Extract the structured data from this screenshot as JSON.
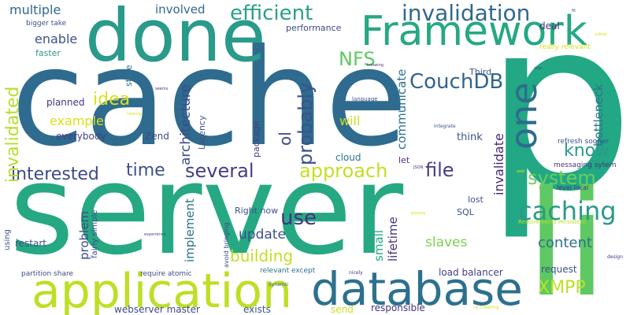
{
  "words": [
    {
      "text": "server",
      "color": "#26a983"
    },
    {
      "text": "cache",
      "color": "#2f6b8e"
    },
    {
      "text": "p",
      "color": "#22a884"
    },
    {
      "text": "done",
      "color": "#2a9a8a"
    },
    {
      "text": "li",
      "color": "#5ec962"
    },
    {
      "text": "application",
      "color": "#bddf26"
    },
    {
      "text": "database",
      "color": "#2c718e"
    },
    {
      "text": "Framework",
      "color": "#26a883"
    },
    {
      "text": "one",
      "color": "#2f6b8e"
    },
    {
      "text": "caching",
      "color": "#2a9a8a"
    },
    {
      "text": "invalidation",
      "color": "#31688e"
    },
    {
      "text": "efficient",
      "color": "#2c9f88"
    },
    {
      "text": "CouchDB",
      "color": "#32648e"
    },
    {
      "text": "NFS",
      "color": "#5ec962"
    },
    {
      "text": "approach",
      "color": "#c2df23"
    },
    {
      "text": "several",
      "color": "#433e85"
    },
    {
      "text": "time",
      "color": "#3b528b"
    },
    {
      "text": "interested",
      "color": "#3e4a89"
    },
    {
      "text": "system",
      "color": "#6ccd5a"
    },
    {
      "text": "file",
      "color": "#433e85"
    },
    {
      "text": "know",
      "color": "#2a9a8a"
    },
    {
      "text": "probably",
      "color": "#3b528b"
    },
    {
      "text": "XMPP",
      "color": "#bddf26"
    },
    {
      "text": "invalidated",
      "color": "#b5de2b"
    },
    {
      "text": "use",
      "color": "#46327e"
    },
    {
      "text": "content",
      "color": "#2c728e"
    },
    {
      "text": "idea",
      "color": "#d8e219"
    },
    {
      "text": "building",
      "color": "#c2df23"
    },
    {
      "text": "architecture",
      "color": "#3e4a89"
    },
    {
      "text": "invalidate",
      "color": "#482878"
    },
    {
      "text": "update",
      "color": "#3b528b"
    },
    {
      "text": "ol",
      "color": "#3e4a89"
    },
    {
      "text": "slaves",
      "color": "#7ad151"
    },
    {
      "text": "communicate",
      "color": "#2c728e"
    },
    {
      "text": "multiple",
      "color": "#31688e"
    },
    {
      "text": "enable",
      "color": "#3b528b"
    },
    {
      "text": "example",
      "color": "#d8e219"
    },
    {
      "text": "will",
      "color": "#c8e020"
    },
    {
      "text": "involved",
      "color": "#31688e"
    },
    {
      "text": "bottleneck",
      "color": "#2c728e"
    },
    {
      "text": "problem",
      "color": "#3e4a89"
    },
    {
      "text": "implement",
      "color": "#2c728e"
    },
    {
      "text": "lifetime",
      "color": "#46327e"
    },
    {
      "text": "small",
      "color": "#22a884"
    },
    {
      "text": "planned",
      "color": "#46327e"
    },
    {
      "text": "think",
      "color": "#3b528b"
    },
    {
      "text": "everybody",
      "color": "#433e85"
    },
    {
      "text": "Zend",
      "color": "#3e4a89"
    },
    {
      "text": "request",
      "color": "#3b528b"
    },
    {
      "text": "webserver master",
      "color": "#3e4a89"
    },
    {
      "text": "exists",
      "color": "#3b528b"
    },
    {
      "text": "responsible",
      "color": "#46327e"
    },
    {
      "text": "deal",
      "color": "#46327e"
    },
    {
      "text": "restart",
      "color": "#3b528b"
    },
    {
      "text": "load balancer",
      "color": "#433e85"
    },
    {
      "text": "performance",
      "color": "#3e4a89"
    },
    {
      "text": "faster",
      "color": "#2a9a8a"
    },
    {
      "text": "store",
      "color": "#2c728e"
    },
    {
      "text": "package",
      "color": "#433e85"
    },
    {
      "text": "Latency",
      "color": "#3b528b"
    },
    {
      "text": "cloud",
      "color": "#2c728e"
    },
    {
      "text": "let",
      "color": "#46327e"
    },
    {
      "text": "Third",
      "color": "#3b528b"
    },
    {
      "text": "lost",
      "color": "#3b528b"
    },
    {
      "text": "SQL",
      "color": "#3e4a89"
    },
    {
      "text": "send",
      "color": "#c8e020"
    },
    {
      "text": "Right now",
      "color": "#3b528b"
    },
    {
      "text": "refresh sooner",
      "color": "#3b528b"
    },
    {
      "text": "messaging sytem",
      "color": "#46327e"
    },
    {
      "text": "partition share",
      "color": "#3e4a89"
    },
    {
      "text": "require atomic",
      "color": "#3e4a89"
    },
    {
      "text": "relevant except",
      "color": "#2c728e"
    },
    {
      "text": "bigger take",
      "color": "#3b528b"
    },
    {
      "text": "really relevant",
      "color": "#d8e219"
    },
    {
      "text": "fairly simple",
      "color": "#3e4a89"
    },
    {
      "text": "using",
      "color": "#3b528b"
    },
    {
      "text": "level local",
      "color": "#46327e"
    },
    {
      "text": "avoid bringing",
      "color": "#3e4a89"
    },
    {
      "text": "Requirements Persistent",
      "color": "#bddf26"
    },
    {
      "text": "dynamic",
      "color": "#3b528b"
    },
    {
      "text": "nicely",
      "color": "#46327e"
    },
    {
      "text": "re creating",
      "color": "#d8e219"
    },
    {
      "text": "design",
      "color": "#46327e"
    },
    {
      "text": "language",
      "color": "#3b528b"
    },
    {
      "text": "integrate",
      "color": "#3b528b"
    },
    {
      "text": "JSON",
      "color": "#46327e"
    },
    {
      "text": "playing",
      "color": "#d8e219"
    },
    {
      "text": "experience",
      "color": "#3e4a89"
    },
    {
      "text": "seems",
      "color": "#46327e"
    },
    {
      "text": "hearing",
      "color": "#d8e219"
    },
    {
      "text": "knowing",
      "color": "#46327e"
    },
    {
      "text": "side",
      "color": "#3e4a89"
    },
    {
      "text": "fit",
      "color": "#3b528b"
    },
    {
      "text": "suited",
      "color": "#d8e219"
    },
    {
      "text": "web",
      "color": "#d8e219"
    },
    {
      "text": "well",
      "color": "#3b528b"
    }
  ]
}
